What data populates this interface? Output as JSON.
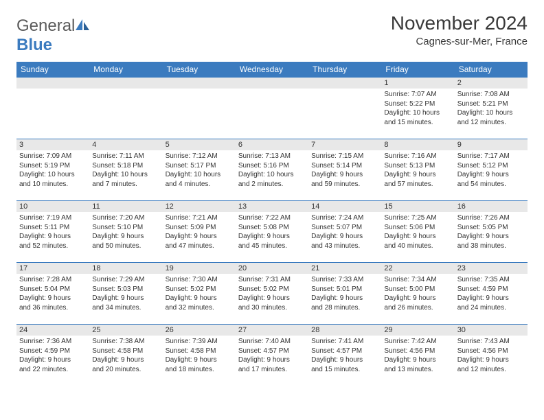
{
  "brand": {
    "name_gray": "General",
    "name_blue": "Blue"
  },
  "title": "November 2024",
  "location": "Cagnes-sur-Mer, France",
  "colors": {
    "header_blue": "#3b7bbf",
    "row_border": "#3b7bbf",
    "daynum_bg": "#e8e8e8"
  },
  "weekdays": [
    "Sunday",
    "Monday",
    "Tuesday",
    "Wednesday",
    "Thursday",
    "Friday",
    "Saturday"
  ],
  "weeks": [
    [
      {
        "n": "",
        "lines": [
          "",
          "",
          "",
          ""
        ]
      },
      {
        "n": "",
        "lines": [
          "",
          "",
          "",
          ""
        ]
      },
      {
        "n": "",
        "lines": [
          "",
          "",
          "",
          ""
        ]
      },
      {
        "n": "",
        "lines": [
          "",
          "",
          "",
          ""
        ]
      },
      {
        "n": "",
        "lines": [
          "",
          "",
          "",
          ""
        ]
      },
      {
        "n": "1",
        "lines": [
          "Sunrise: 7:07 AM",
          "Sunset: 5:22 PM",
          "Daylight: 10 hours",
          "and 15 minutes."
        ]
      },
      {
        "n": "2",
        "lines": [
          "Sunrise: 7:08 AM",
          "Sunset: 5:21 PM",
          "Daylight: 10 hours",
          "and 12 minutes."
        ]
      }
    ],
    [
      {
        "n": "3",
        "lines": [
          "Sunrise: 7:09 AM",
          "Sunset: 5:19 PM",
          "Daylight: 10 hours",
          "and 10 minutes."
        ]
      },
      {
        "n": "4",
        "lines": [
          "Sunrise: 7:11 AM",
          "Sunset: 5:18 PM",
          "Daylight: 10 hours",
          "and 7 minutes."
        ]
      },
      {
        "n": "5",
        "lines": [
          "Sunrise: 7:12 AM",
          "Sunset: 5:17 PM",
          "Daylight: 10 hours",
          "and 4 minutes."
        ]
      },
      {
        "n": "6",
        "lines": [
          "Sunrise: 7:13 AM",
          "Sunset: 5:16 PM",
          "Daylight: 10 hours",
          "and 2 minutes."
        ]
      },
      {
        "n": "7",
        "lines": [
          "Sunrise: 7:15 AM",
          "Sunset: 5:14 PM",
          "Daylight: 9 hours",
          "and 59 minutes."
        ]
      },
      {
        "n": "8",
        "lines": [
          "Sunrise: 7:16 AM",
          "Sunset: 5:13 PM",
          "Daylight: 9 hours",
          "and 57 minutes."
        ]
      },
      {
        "n": "9",
        "lines": [
          "Sunrise: 7:17 AM",
          "Sunset: 5:12 PM",
          "Daylight: 9 hours",
          "and 54 minutes."
        ]
      }
    ],
    [
      {
        "n": "10",
        "lines": [
          "Sunrise: 7:19 AM",
          "Sunset: 5:11 PM",
          "Daylight: 9 hours",
          "and 52 minutes."
        ]
      },
      {
        "n": "11",
        "lines": [
          "Sunrise: 7:20 AM",
          "Sunset: 5:10 PM",
          "Daylight: 9 hours",
          "and 50 minutes."
        ]
      },
      {
        "n": "12",
        "lines": [
          "Sunrise: 7:21 AM",
          "Sunset: 5:09 PM",
          "Daylight: 9 hours",
          "and 47 minutes."
        ]
      },
      {
        "n": "13",
        "lines": [
          "Sunrise: 7:22 AM",
          "Sunset: 5:08 PM",
          "Daylight: 9 hours",
          "and 45 minutes."
        ]
      },
      {
        "n": "14",
        "lines": [
          "Sunrise: 7:24 AM",
          "Sunset: 5:07 PM",
          "Daylight: 9 hours",
          "and 43 minutes."
        ]
      },
      {
        "n": "15",
        "lines": [
          "Sunrise: 7:25 AM",
          "Sunset: 5:06 PM",
          "Daylight: 9 hours",
          "and 40 minutes."
        ]
      },
      {
        "n": "16",
        "lines": [
          "Sunrise: 7:26 AM",
          "Sunset: 5:05 PM",
          "Daylight: 9 hours",
          "and 38 minutes."
        ]
      }
    ],
    [
      {
        "n": "17",
        "lines": [
          "Sunrise: 7:28 AM",
          "Sunset: 5:04 PM",
          "Daylight: 9 hours",
          "and 36 minutes."
        ]
      },
      {
        "n": "18",
        "lines": [
          "Sunrise: 7:29 AM",
          "Sunset: 5:03 PM",
          "Daylight: 9 hours",
          "and 34 minutes."
        ]
      },
      {
        "n": "19",
        "lines": [
          "Sunrise: 7:30 AM",
          "Sunset: 5:02 PM",
          "Daylight: 9 hours",
          "and 32 minutes."
        ]
      },
      {
        "n": "20",
        "lines": [
          "Sunrise: 7:31 AM",
          "Sunset: 5:02 PM",
          "Daylight: 9 hours",
          "and 30 minutes."
        ]
      },
      {
        "n": "21",
        "lines": [
          "Sunrise: 7:33 AM",
          "Sunset: 5:01 PM",
          "Daylight: 9 hours",
          "and 28 minutes."
        ]
      },
      {
        "n": "22",
        "lines": [
          "Sunrise: 7:34 AM",
          "Sunset: 5:00 PM",
          "Daylight: 9 hours",
          "and 26 minutes."
        ]
      },
      {
        "n": "23",
        "lines": [
          "Sunrise: 7:35 AM",
          "Sunset: 4:59 PM",
          "Daylight: 9 hours",
          "and 24 minutes."
        ]
      }
    ],
    [
      {
        "n": "24",
        "lines": [
          "Sunrise: 7:36 AM",
          "Sunset: 4:59 PM",
          "Daylight: 9 hours",
          "and 22 minutes."
        ]
      },
      {
        "n": "25",
        "lines": [
          "Sunrise: 7:38 AM",
          "Sunset: 4:58 PM",
          "Daylight: 9 hours",
          "and 20 minutes."
        ]
      },
      {
        "n": "26",
        "lines": [
          "Sunrise: 7:39 AM",
          "Sunset: 4:58 PM",
          "Daylight: 9 hours",
          "and 18 minutes."
        ]
      },
      {
        "n": "27",
        "lines": [
          "Sunrise: 7:40 AM",
          "Sunset: 4:57 PM",
          "Daylight: 9 hours",
          "and 17 minutes."
        ]
      },
      {
        "n": "28",
        "lines": [
          "Sunrise: 7:41 AM",
          "Sunset: 4:57 PM",
          "Daylight: 9 hours",
          "and 15 minutes."
        ]
      },
      {
        "n": "29",
        "lines": [
          "Sunrise: 7:42 AM",
          "Sunset: 4:56 PM",
          "Daylight: 9 hours",
          "and 13 minutes."
        ]
      },
      {
        "n": "30",
        "lines": [
          "Sunrise: 7:43 AM",
          "Sunset: 4:56 PM",
          "Daylight: 9 hours",
          "and 12 minutes."
        ]
      }
    ]
  ]
}
